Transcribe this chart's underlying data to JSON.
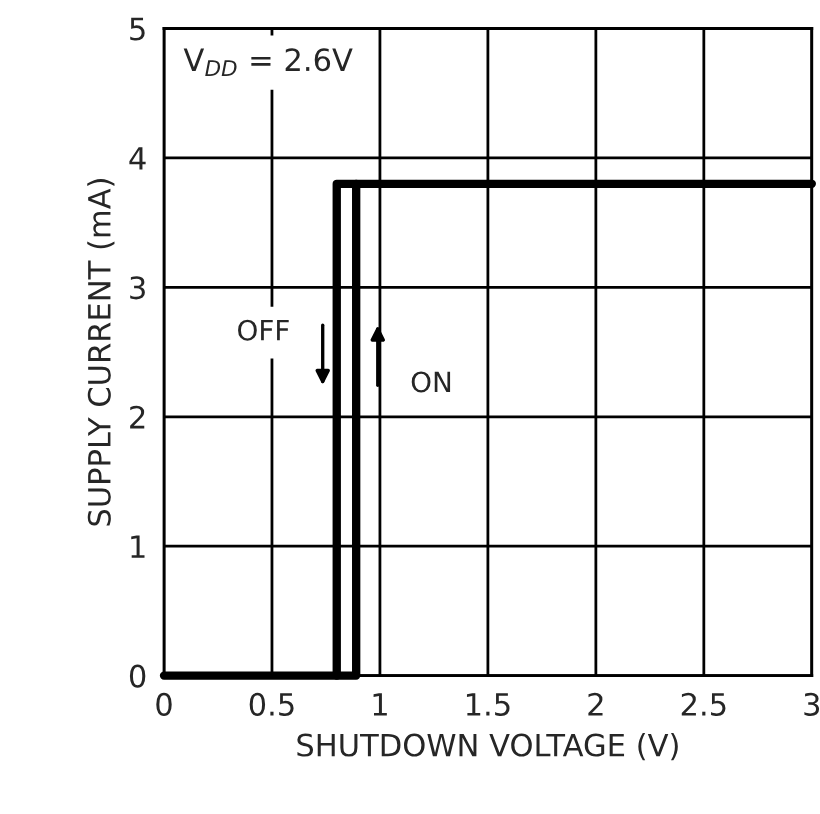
{
  "chart_data": {
    "type": "line",
    "xlabel": "SHUTDOWN VOLTAGE (V)",
    "ylabel": "SUPPLY CURRENT (mA)",
    "xlim": [
      0,
      3
    ],
    "xticks": [
      0,
      0.5,
      1,
      1.5,
      2,
      2.5,
      3
    ],
    "ylim": [
      0,
      5
    ],
    "yticks": [
      0,
      1,
      2,
      3,
      4,
      5
    ],
    "grid": true,
    "legend": false,
    "annotations": [
      "V$_{DD}$ = 2.6V",
      "OFF",
      "ON"
    ],
    "series": [
      {
        "color": "#000000",
        "x": [
          0,
          0.89,
          0.89,
          3
        ],
        "values": [
          0,
          0,
          3.8,
          3.8
        ]
      },
      {
        "color": "#000000",
        "x": [
          0.8,
          0.8,
          0.89
        ],
        "values": [
          0,
          3.8,
          3.8
        ]
      }
    ]
  }
}
